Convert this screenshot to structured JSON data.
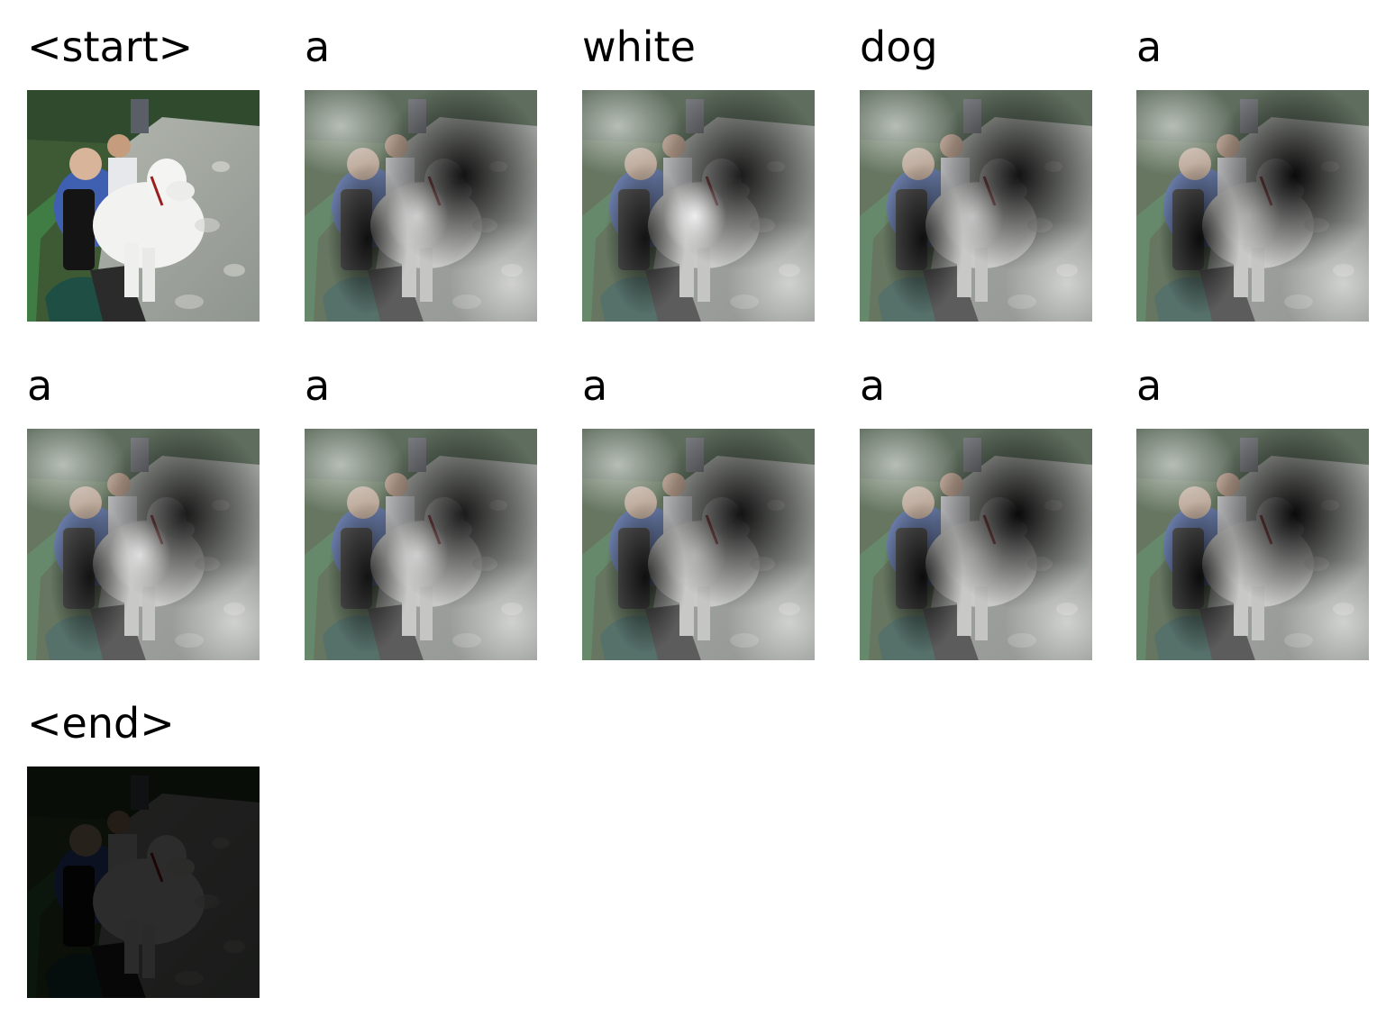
{
  "figure": {
    "frames": [
      {
        "token": "<start>",
        "variant": "original"
      },
      {
        "token": "a",
        "variant": "attention",
        "spot": 0.55,
        "hole": 0.9
      },
      {
        "token": "white",
        "variant": "attention",
        "spot": 0.85,
        "hole": 0.85
      },
      {
        "token": "dog",
        "variant": "attention",
        "spot": 0.45,
        "hole": 0.9
      },
      {
        "token": "a",
        "variant": "attention",
        "spot": 0.25,
        "hole": 0.95
      },
      {
        "token": "a",
        "variant": "attention",
        "spot": 0.7,
        "hole": 0.85
      },
      {
        "token": "a",
        "variant": "attention",
        "spot": 0.55,
        "hole": 0.85
      },
      {
        "token": "a",
        "variant": "attention",
        "spot": 0.3,
        "hole": 0.9
      },
      {
        "token": "a",
        "variant": "attention",
        "spot": 0.15,
        "hole": 0.95
      },
      {
        "token": "a",
        "variant": "attention",
        "spot": 0.1,
        "hole": 0.95
      },
      {
        "token": "<end>",
        "variant": "dark"
      }
    ]
  }
}
